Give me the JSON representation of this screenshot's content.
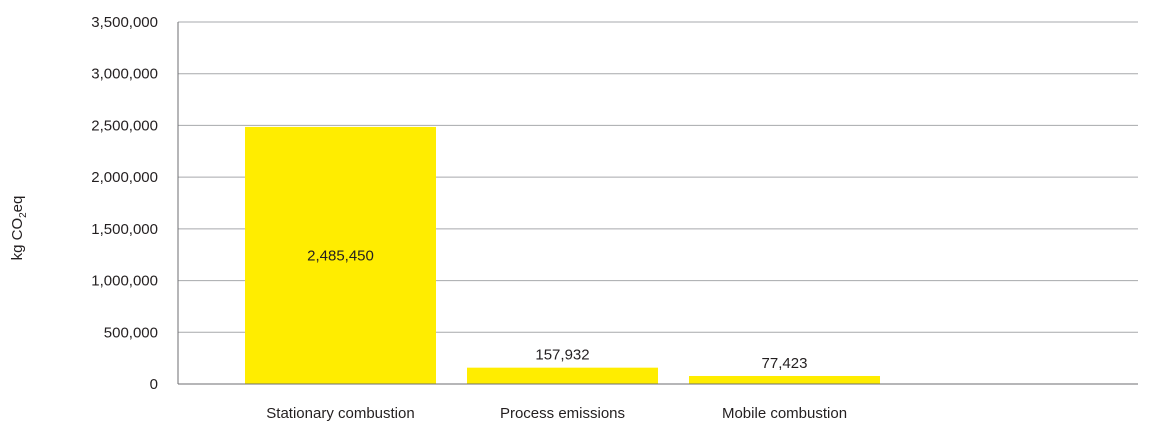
{
  "chart_data": {
    "type": "bar",
    "title": "",
    "xlabel": "",
    "ylabel": {
      "prefix": "kg CO",
      "subscript": "2",
      "suffix": "eq"
    },
    "categories": [
      "Stationary combustion",
      "Process emissions",
      "Mobile combustion"
    ],
    "values": [
      2485450,
      157932,
      77423
    ],
    "value_labels": [
      "2,485,450",
      "157,932",
      "77,423"
    ],
    "ylim": [
      0,
      3500000
    ],
    "yticks": [
      0,
      500000,
      1000000,
      1500000,
      2000000,
      2500000,
      3000000,
      3500000
    ],
    "ytick_labels": [
      "0",
      "500,000",
      "1,000,000",
      "1,500,000",
      "2,000,000",
      "2,500,000",
      "3,000,000",
      "3,500,000"
    ],
    "grid": true,
    "legend": "none",
    "bar_color": "#ffed00",
    "grid_color": "#a7a9ac",
    "axis_color": "#6d6e71"
  }
}
